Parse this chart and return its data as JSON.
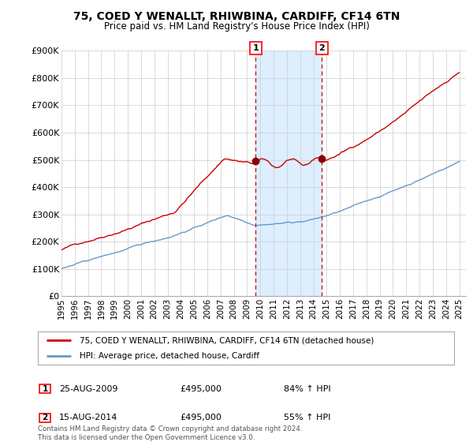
{
  "title": "75, COED Y WENALLT, RHIWBINA, CARDIFF, CF14 6TN",
  "subtitle": "Price paid vs. HM Land Registry's House Price Index (HPI)",
  "sale1": {
    "date": "25-AUG-2009",
    "price": "£495,000",
    "hpi_change": "84%",
    "label": "1"
  },
  "sale2": {
    "date": "15-AUG-2014",
    "price": "£495,000",
    "hpi_change": "55%",
    "label": "2"
  },
  "sale1_year": 2009.65,
  "sale2_year": 2014.62,
  "ylabel_ticks": [
    0,
    100000,
    200000,
    300000,
    400000,
    500000,
    600000,
    700000,
    800000,
    900000
  ],
  "ylabel_labels": [
    "£0",
    "£100K",
    "£200K",
    "£300K",
    "£400K",
    "£500K",
    "£600K",
    "£700K",
    "£800K",
    "£900K"
  ],
  "xmin": 1995,
  "xmax": 2025.5,
  "ymin": 0,
  "ymax": 900000,
  "line1_color": "#cc0000",
  "line2_color": "#6699cc",
  "shade_color": "#ddeeff",
  "marker_color": "#cc0000",
  "dot_color": "#880000",
  "legend_line1": "75, COED Y WENALLT, RHIWBINA, CARDIFF, CF14 6TN (detached house)",
  "legend_line2": "HPI: Average price, detached house, Cardiff",
  "footer": "Contains HM Land Registry data © Crown copyright and database right 2024.\nThis data is licensed under the Open Government Licence v3.0.",
  "background_color": "#ffffff",
  "grid_color": "#cccccc"
}
